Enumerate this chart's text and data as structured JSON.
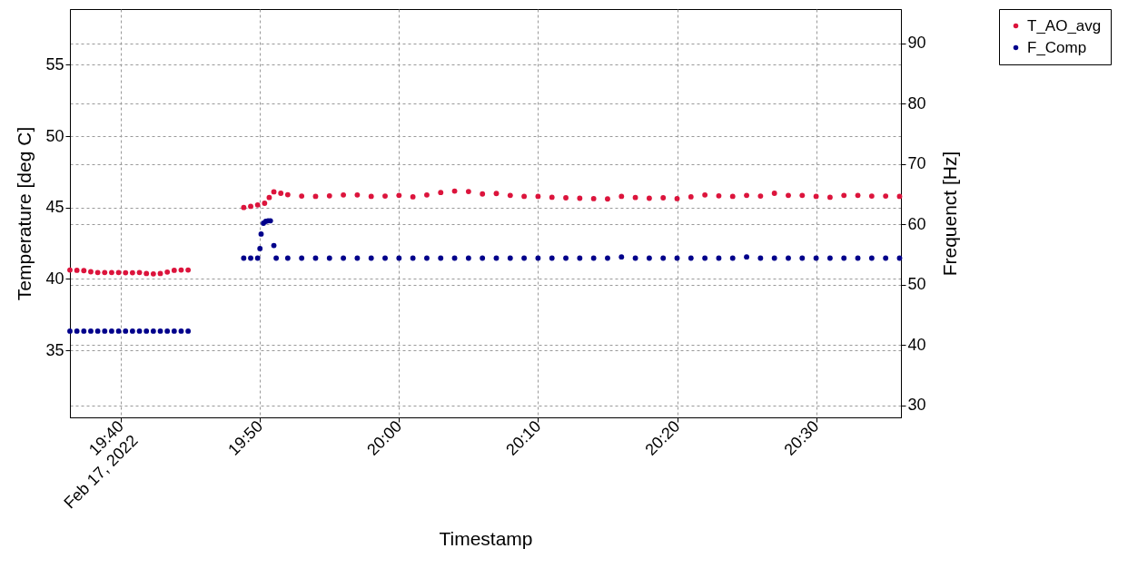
{
  "chart_data": {
    "type": "scatter",
    "xlabel": "Timestamp",
    "ylabel": "Temperature [deg C]",
    "y2label": "Frequenct [Hz]",
    "xlim": [
      "2022-02-17T19:36:20",
      "2022-02-17T20:36:06"
    ],
    "xticks": [
      {
        "value": "2022-02-17T19:40",
        "label": "19:40\nFeb 17, 2022"
      },
      {
        "value": "2022-02-17T19:50",
        "label": "19:50"
      },
      {
        "value": "2022-02-17T20:00",
        "label": "20:00"
      },
      {
        "value": "2022-02-17T20:10",
        "label": "20:10"
      },
      {
        "value": "2022-02-17T20:20",
        "label": "20:20"
      },
      {
        "value": "2022-02-17T20:30",
        "label": "20:30"
      }
    ],
    "ylim": [
      30.3,
      58.9
    ],
    "yticks": [
      35,
      40,
      45,
      50,
      55
    ],
    "y2lim": [
      28,
      95.7
    ],
    "y2ticks": [
      30,
      40,
      50,
      60,
      70,
      80,
      90
    ],
    "grid": true,
    "legend": "top right",
    "marker": "circle",
    "series": [
      {
        "name": "T_AO_avg",
        "color": "#dc143c",
        "axis": "y",
        "x": [
          "2022-02-17T19:36:20",
          "2022-02-17T19:36:50",
          "2022-02-17T19:37:20",
          "2022-02-17T19:37:50",
          "2022-02-17T19:38:20",
          "2022-02-17T19:38:50",
          "2022-02-17T19:39:20",
          "2022-02-17T19:39:50",
          "2022-02-17T19:40:20",
          "2022-02-17T19:40:50",
          "2022-02-17T19:41:20",
          "2022-02-17T19:41:50",
          "2022-02-17T19:42:20",
          "2022-02-17T19:42:50",
          "2022-02-17T19:43:20",
          "2022-02-17T19:43:50",
          "2022-02-17T19:44:20",
          "2022-02-17T19:44:50",
          "2022-02-17T19:48:50",
          "2022-02-17T19:49:20",
          "2022-02-17T19:49:50",
          "2022-02-17T19:50:20",
          "2022-02-17T19:50:40",
          "2022-02-17T19:51:00",
          "2022-02-17T19:51:30",
          "2022-02-17T19:52:00",
          "2022-02-17T19:53:00",
          "2022-02-17T19:54:00",
          "2022-02-17T19:55:00",
          "2022-02-17T19:56:00",
          "2022-02-17T19:57:00",
          "2022-02-17T19:58:00",
          "2022-02-17T19:59:00",
          "2022-02-17T20:00:00",
          "2022-02-17T20:01:00",
          "2022-02-17T20:02:00",
          "2022-02-17T20:03:00",
          "2022-02-17T20:04:00",
          "2022-02-17T20:05:00",
          "2022-02-17T20:06:00",
          "2022-02-17T20:07:00",
          "2022-02-17T20:08:00",
          "2022-02-17T20:09:00",
          "2022-02-17T20:10:00",
          "2022-02-17T20:11:00",
          "2022-02-17T20:12:00",
          "2022-02-17T20:13:00",
          "2022-02-17T20:14:00",
          "2022-02-17T20:15:00",
          "2022-02-17T20:16:00",
          "2022-02-17T20:17:00",
          "2022-02-17T20:18:00",
          "2022-02-17T20:19:00",
          "2022-02-17T20:20:00",
          "2022-02-17T20:21:00",
          "2022-02-17T20:22:00",
          "2022-02-17T20:23:00",
          "2022-02-17T20:24:00",
          "2022-02-17T20:25:00",
          "2022-02-17T20:26:00",
          "2022-02-17T20:27:00",
          "2022-02-17T20:28:00",
          "2022-02-17T20:29:00",
          "2022-02-17T20:30:00",
          "2022-02-17T20:31:00",
          "2022-02-17T20:32:00",
          "2022-02-17T20:33:00",
          "2022-02-17T20:34:00",
          "2022-02-17T20:35:00",
          "2022-02-17T20:36:00"
        ],
        "values": [
          40.62,
          40.6,
          40.58,
          40.5,
          40.45,
          40.45,
          40.45,
          40.45,
          40.43,
          40.43,
          40.45,
          40.38,
          40.35,
          40.38,
          40.48,
          40.6,
          40.62,
          40.62,
          45.0,
          45.08,
          45.18,
          45.3,
          45.7,
          46.1,
          46.0,
          45.9,
          45.8,
          45.78,
          45.82,
          45.88,
          45.88,
          45.78,
          45.8,
          45.85,
          45.75,
          45.88,
          46.05,
          46.15,
          46.12,
          45.95,
          45.98,
          45.85,
          45.78,
          45.78,
          45.72,
          45.68,
          45.65,
          45.62,
          45.6,
          45.78,
          45.7,
          45.65,
          45.68,
          45.62,
          45.75,
          45.88,
          45.82,
          45.78,
          45.85,
          45.8,
          46.0,
          45.85,
          45.85,
          45.78,
          45.72,
          45.85,
          45.85,
          45.8,
          45.8,
          45.78
        ]
      },
      {
        "name": "F_Comp",
        "color": "#00008b",
        "axis": "y2",
        "x": [
          "2022-02-17T19:36:20",
          "2022-02-17T19:36:50",
          "2022-02-17T19:37:20",
          "2022-02-17T19:37:50",
          "2022-02-17T19:38:20",
          "2022-02-17T19:38:50",
          "2022-02-17T19:39:20",
          "2022-02-17T19:39:50",
          "2022-02-17T19:40:20",
          "2022-02-17T19:40:50",
          "2022-02-17T19:41:20",
          "2022-02-17T19:41:50",
          "2022-02-17T19:42:20",
          "2022-02-17T19:42:50",
          "2022-02-17T19:43:20",
          "2022-02-17T19:43:50",
          "2022-02-17T19:44:20",
          "2022-02-17T19:44:50",
          "2022-02-17T19:48:50",
          "2022-02-17T19:49:20",
          "2022-02-17T19:49:50",
          "2022-02-17T19:50:00",
          "2022-02-17T19:50:05",
          "2022-02-17T19:50:15",
          "2022-02-17T19:50:25",
          "2022-02-17T19:50:35",
          "2022-02-17T19:50:45",
          "2022-02-17T19:51:00",
          "2022-02-17T19:51:10",
          "2022-02-17T19:52:00",
          "2022-02-17T19:53:00",
          "2022-02-17T19:54:00",
          "2022-02-17T19:55:00",
          "2022-02-17T19:56:00",
          "2022-02-17T19:57:00",
          "2022-02-17T19:58:00",
          "2022-02-17T19:59:00",
          "2022-02-17T20:00:00",
          "2022-02-17T20:01:00",
          "2022-02-17T20:02:00",
          "2022-02-17T20:03:00",
          "2022-02-17T20:04:00",
          "2022-02-17T20:05:00",
          "2022-02-17T20:06:00",
          "2022-02-17T20:07:00",
          "2022-02-17T20:08:00",
          "2022-02-17T20:09:00",
          "2022-02-17T20:10:00",
          "2022-02-17T20:11:00",
          "2022-02-17T20:12:00",
          "2022-02-17T20:13:00",
          "2022-02-17T20:14:00",
          "2022-02-17T20:15:00",
          "2022-02-17T20:16:00",
          "2022-02-17T20:17:00",
          "2022-02-17T20:18:00",
          "2022-02-17T20:19:00",
          "2022-02-17T20:20:00",
          "2022-02-17T20:21:00",
          "2022-02-17T20:22:00",
          "2022-02-17T20:23:00",
          "2022-02-17T20:24:00",
          "2022-02-17T20:25:00",
          "2022-02-17T20:26:00",
          "2022-02-17T20:27:00",
          "2022-02-17T20:28:00",
          "2022-02-17T20:29:00",
          "2022-02-17T20:30:00",
          "2022-02-17T20:31:00",
          "2022-02-17T20:32:00",
          "2022-02-17T20:33:00",
          "2022-02-17T20:34:00",
          "2022-02-17T20:35:00",
          "2022-02-17T20:36:00"
        ],
        "values": [
          42.3,
          42.3,
          42.3,
          42.3,
          42.3,
          42.3,
          42.3,
          42.3,
          42.3,
          42.3,
          42.3,
          42.3,
          42.3,
          42.3,
          42.3,
          42.3,
          42.3,
          42.3,
          54.4,
          54.4,
          54.4,
          56.0,
          58.4,
          60.2,
          60.5,
          60.6,
          60.6,
          56.5,
          54.4,
          54.4,
          54.4,
          54.4,
          54.4,
          54.4,
          54.4,
          54.4,
          54.4,
          54.4,
          54.4,
          54.4,
          54.4,
          54.4,
          54.4,
          54.4,
          54.4,
          54.4,
          54.4,
          54.4,
          54.4,
          54.4,
          54.4,
          54.4,
          54.4,
          54.6,
          54.4,
          54.4,
          54.4,
          54.4,
          54.4,
          54.4,
          54.4,
          54.4,
          54.6,
          54.4,
          54.4,
          54.4,
          54.4,
          54.4,
          54.4,
          54.4,
          54.4,
          54.4,
          54.4,
          54.4
        ]
      }
    ]
  }
}
